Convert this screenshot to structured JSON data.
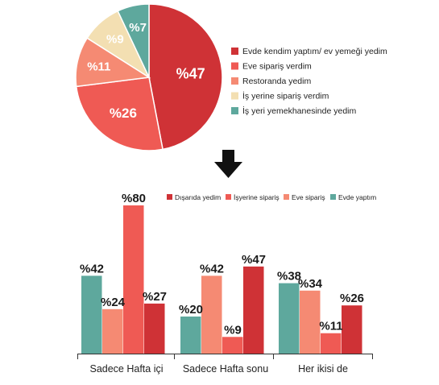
{
  "colors": {
    "dark_red": "#cf3236",
    "coral": "#ef5a54",
    "salmon": "#f58a73",
    "cream": "#f3dfb2",
    "teal": "#5ea89d",
    "arrow": "#111111",
    "axis": "#333333"
  },
  "chart_data": [
    {
      "type": "pie",
      "slices": [
        {
          "label": "Evde kendim yaptım/ ev yemeği yedim",
          "value": 47,
          "value_label": "%47",
          "color": "#cf3236"
        },
        {
          "label": "Eve sipariş verdim",
          "value": 26,
          "value_label": "%26",
          "color": "#ef5a54"
        },
        {
          "label": "Restoranda yedim",
          "value": 11,
          "value_label": "%11",
          "color": "#f58a73"
        },
        {
          "label": "İş yerine sipariş verdim",
          "value": 9,
          "value_label": "%9",
          "color": "#f3dfb2"
        },
        {
          "label": "İş yeri yemekhanesinde yedim",
          "value": 7,
          "value_label": "%7",
          "color": "#5ea89d"
        }
      ],
      "legend_position": "right"
    },
    {
      "type": "bar",
      "categories": [
        "Sadece Hafta içi",
        "Sadece Hafta sonu",
        "Her ikisi de"
      ],
      "series": [
        {
          "name": "Evde yaptım",
          "color": "#5ea89d",
          "values": [
            42,
            20,
            38
          ],
          "value_labels": [
            "%42",
            "%20",
            "%38"
          ]
        },
        {
          "name": "Eve sipariş",
          "color": "#f58a73",
          "values": [
            24,
            42,
            34
          ],
          "value_labels": [
            "%24",
            "%42",
            "%34"
          ]
        },
        {
          "name": "İşyerine sipariş",
          "color": "#ef5a54",
          "values": [
            80,
            9,
            11
          ],
          "value_labels": [
            "%80",
            "%9",
            "%11"
          ]
        },
        {
          "name": "Dışarıda yedim",
          "color": "#cf3236",
          "values": [
            27,
            47,
            26
          ],
          "value_labels": [
            "%27",
            "%47",
            "%26"
          ]
        }
      ],
      "legend_order": [
        "Dışarıda yedim",
        "İşyerine sipariş",
        "Eve sipariş",
        "Evde yaptım"
      ],
      "legend_position": "top-right",
      "ylim": [
        0,
        80
      ],
      "grid": false
    }
  ]
}
